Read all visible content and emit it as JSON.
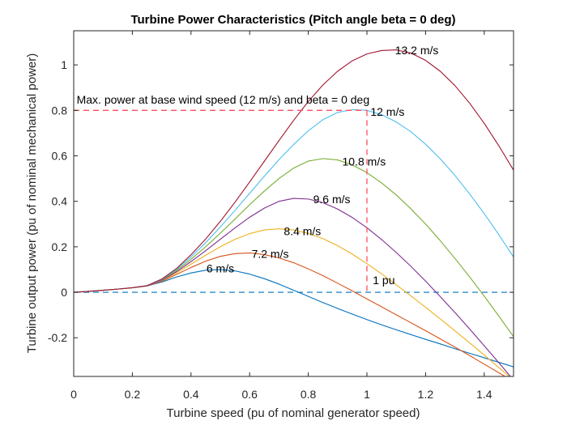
{
  "chart_data": {
    "type": "line",
    "title": "Turbine Power Characteristics (Pitch angle beta = 0 deg)",
    "xlabel": "Turbine speed (pu of nominal generator speed)",
    "ylabel": "Turbine output power (pu of nominal mechanical power)",
    "xlim": [
      0,
      1.5
    ],
    "ylim": [
      -0.37,
      1.15
    ],
    "xticks": [
      0,
      0.2,
      0.4,
      0.6,
      0.8,
      1,
      1.2,
      1.4
    ],
    "xtick_labels": [
      "0",
      "0.2",
      "0.4",
      "0.6",
      "0.8",
      "1",
      "1.2",
      "1.4"
    ],
    "yticks": [
      -0.2,
      0,
      0.2,
      0.4,
      0.6,
      0.8,
      1
    ],
    "ytick_labels": [
      "-0.2",
      "0",
      "0.2",
      "0.4",
      "0.6",
      "0.8",
      "1"
    ],
    "grid": false,
    "x": [
      0,
      0.05,
      0.1,
      0.15,
      0.2,
      0.25,
      0.3,
      0.35,
      0.4,
      0.45,
      0.5,
      0.55,
      0.6,
      0.65,
      0.7,
      0.75,
      0.8,
      0.85,
      0.9,
      0.95,
      1.0,
      1.05,
      1.1,
      1.15,
      1.2,
      1.25,
      1.3,
      1.35,
      1.4,
      1.45,
      1.5
    ],
    "series": [
      {
        "name": "6 m/s",
        "color": "#0072BD",
        "values": [
          0,
          0.004,
          0.009,
          0.014,
          0.02,
          0.028,
          0.045,
          0.067,
          0.085,
          0.097,
          0.1,
          0.094,
          0.08,
          0.06,
          0.036,
          0.009,
          -0.018,
          -0.045,
          -0.071,
          -0.096,
          -0.12,
          -0.143,
          -0.165,
          -0.186,
          -0.207,
          -0.227,
          -0.248,
          -0.268,
          -0.288,
          -0.308,
          -0.328
        ]
      },
      {
        "name": "7.2 m/s",
        "color": "#D95319",
        "values": [
          0,
          0.004,
          0.009,
          0.014,
          0.02,
          0.028,
          0.048,
          0.078,
          0.109,
          0.137,
          0.158,
          0.17,
          0.173,
          0.166,
          0.151,
          0.13,
          0.103,
          0.073,
          0.04,
          0.006,
          -0.029,
          -0.064,
          -0.099,
          -0.134,
          -0.169,
          -0.205,
          -0.241,
          -0.278,
          -0.316,
          -0.354,
          -0.392
        ]
      },
      {
        "name": "8.4 m/s",
        "color": "#EDB120",
        "values": [
          0,
          0.004,
          0.009,
          0.014,
          0.02,
          0.028,
          0.05,
          0.085,
          0.124,
          0.163,
          0.2,
          0.233,
          0.258,
          0.274,
          0.279,
          0.274,
          0.259,
          0.236,
          0.205,
          0.168,
          0.126,
          0.081,
          0.033,
          -0.016,
          -0.066,
          -0.117,
          -0.169,
          -0.222,
          -0.276,
          -0.331,
          -0.387
        ]
      },
      {
        "name": "9.6 m/s",
        "color": "#7E2F8E",
        "values": [
          0,
          0.004,
          0.009,
          0.014,
          0.02,
          0.028,
          0.052,
          0.09,
          0.135,
          0.183,
          0.233,
          0.283,
          0.33,
          0.37,
          0.4,
          0.413,
          0.41,
          0.394,
          0.366,
          0.329,
          0.284,
          0.232,
          0.175,
          0.114,
          0.049,
          -0.019,
          -0.089,
          -0.161,
          -0.235,
          -0.31,
          -0.386
        ]
      },
      {
        "name": "10.8 m/s",
        "color": "#77AC30",
        "values": [
          0,
          0.004,
          0.009,
          0.014,
          0.02,
          0.029,
          0.055,
          0.095,
          0.145,
          0.2,
          0.26,
          0.322,
          0.385,
          0.445,
          0.5,
          0.546,
          0.577,
          0.588,
          0.582,
          0.56,
          0.526,
          0.481,
          0.428,
          0.367,
          0.3,
          0.227,
          0.149,
          0.068,
          -0.017,
          -0.105,
          -0.195
        ]
      },
      {
        "name": "12 m/s",
        "color": "#4DBEEE",
        "values": [
          0,
          0.004,
          0.009,
          0.014,
          0.02,
          0.029,
          0.056,
          0.1,
          0.155,
          0.218,
          0.287,
          0.36,
          0.435,
          0.51,
          0.583,
          0.65,
          0.71,
          0.759,
          0.791,
          0.803,
          0.8,
          0.781,
          0.749,
          0.706,
          0.651,
          0.587,
          0.514,
          0.433,
          0.346,
          0.253,
          0.155
        ]
      },
      {
        "name": "13.2 m/s",
        "color": "#A2142F",
        "values": [
          0,
          0.004,
          0.009,
          0.014,
          0.02,
          0.029,
          0.058,
          0.104,
          0.165,
          0.234,
          0.312,
          0.396,
          0.485,
          0.576,
          0.667,
          0.756,
          0.839,
          0.912,
          0.972,
          1.018,
          1.048,
          1.063,
          1.066,
          1.052,
          1.02,
          0.972,
          0.909,
          0.832,
          0.743,
          0.644,
          0.537
        ]
      }
    ],
    "series_labels": [
      {
        "text": "6 m/s",
        "x": 0.5,
        "y": 0.1
      },
      {
        "text": "7.2 m/s",
        "x": 0.67,
        "y": 0.165
      },
      {
        "text": "8.4 m/s",
        "x": 0.78,
        "y": 0.265
      },
      {
        "text": "9.6 m/s",
        "x": 0.88,
        "y": 0.405
      },
      {
        "text": "10.8 m/s",
        "x": 0.99,
        "y": 0.57
      },
      {
        "text": "12 m/s",
        "x": 1.07,
        "y": 0.79
      },
      {
        "text": "13.2 m/s",
        "x": 1.17,
        "y": 1.06
      }
    ],
    "reference_lines": {
      "max_power_level": 0.8,
      "base_speed": 1,
      "zero_level": 0,
      "max_power_color": "#FF4D5E",
      "zero_line_color": "#0072BD"
    },
    "annotations": [
      {
        "text": "Max. power at base wind speed (12 m/s) and beta = 0 deg",
        "x": 0.01,
        "y": 0.83
      },
      {
        "text": "1 pu",
        "x": 1.02,
        "y": 0.035
      }
    ]
  }
}
